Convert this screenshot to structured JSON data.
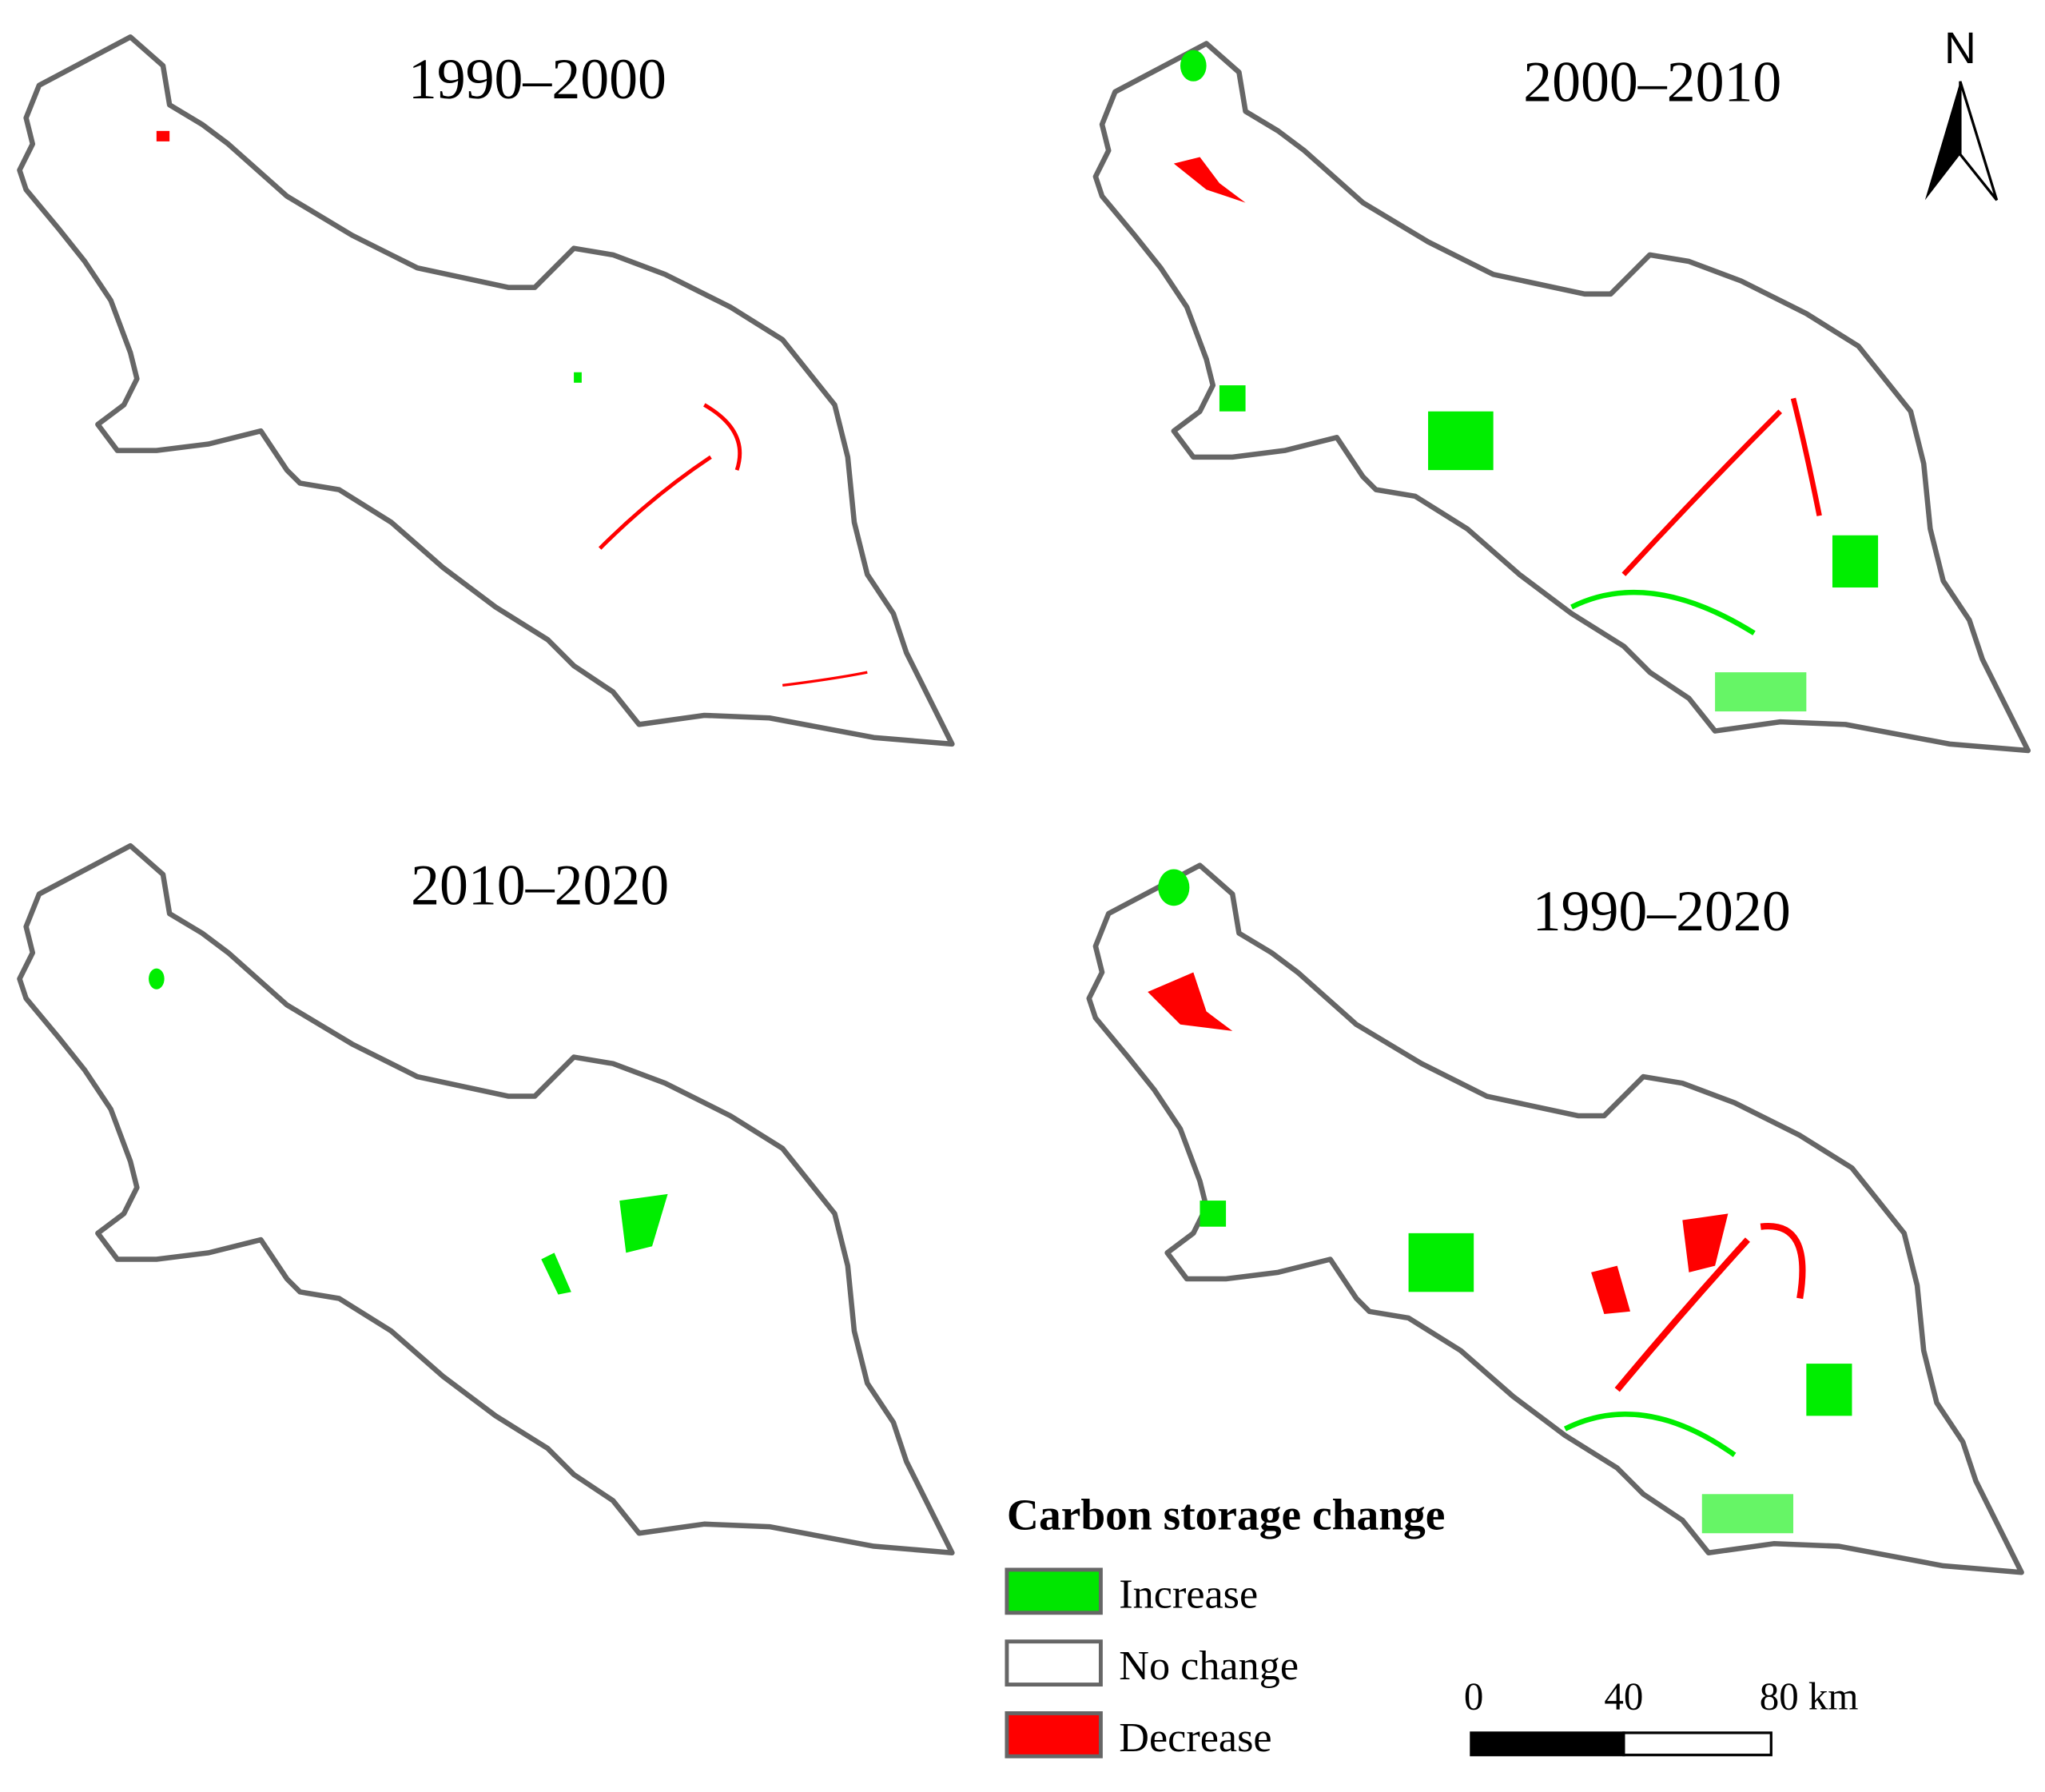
{
  "panels": [
    {
      "title": "1990–2000"
    },
    {
      "title": "2000–2010"
    },
    {
      "title": "2010–2020"
    },
    {
      "title": "1990–2020"
    }
  ],
  "north": "N",
  "legend": {
    "title": "Carbon storage change",
    "items": [
      {
        "label": "Increase",
        "color": "#00e600"
      },
      {
        "label": "No change",
        "color": "#ffffff"
      },
      {
        "label": "Decrease",
        "color": "#ff0000"
      }
    ]
  },
  "scale_bar": {
    "labels": [
      "0",
      "40",
      "80 km"
    ]
  }
}
